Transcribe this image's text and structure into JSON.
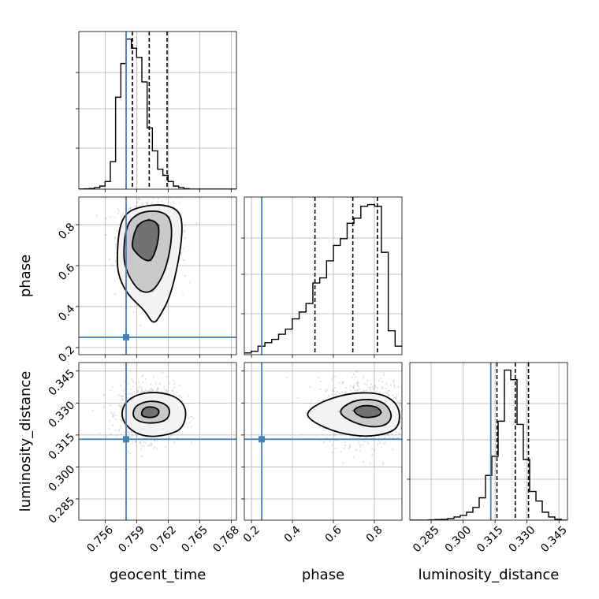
{
  "chart_data": {
    "type": "corner",
    "parameters": [
      "geocent_time",
      "phase",
      "luminosity_distance"
    ],
    "truths": {
      "geocent_time": 0.758,
      "phase": 0.25,
      "luminosity_distance": 0.313
    },
    "ranges": {
      "geocent_time": [
        0.7535,
        0.7685
      ],
      "phase": [
        0.165,
        0.935
      ],
      "luminosity_distance": [
        0.275,
        0.349
      ]
    },
    "ticks": {
      "geocent_time": [
        0.756,
        0.759,
        0.762,
        0.765,
        0.768
      ],
      "phase": [
        0.2,
        0.4,
        0.6,
        0.8
      ],
      "luminosity_distance": [
        0.285,
        0.3,
        0.315,
        0.33,
        0.345
      ]
    },
    "tick_labels": {
      "geocent_time": [
        "0.756",
        "0.759",
        "0.762",
        "0.765",
        "0.768"
      ],
      "phase": [
        "0.2",
        "0.4",
        "0.6",
        "0.8"
      ],
      "luminosity_distance": [
        "0.285",
        "0.300",
        "0.315",
        "0.330",
        "0.345"
      ]
    },
    "quantiles": {
      "geocent_time": [
        0.7586,
        0.7602,
        0.7619
      ],
      "phase": [
        0.51,
        0.695,
        0.815
      ],
      "luminosity_distance": [
        0.3159,
        0.3245,
        0.3307
      ]
    },
    "marginals": {
      "geocent_time": {
        "min": 0.7535,
        "max": 0.7685,
        "counts": [
          0.1,
          0.2,
          0.4,
          1.0,
          2.0,
          5.0,
          18,
          60,
          82,
          98,
          92,
          86,
          70,
          40,
          25,
          13,
          9,
          5,
          2,
          1,
          0.3,
          0,
          0,
          0,
          0,
          0,
          0,
          0,
          0,
          0
        ]
      },
      "phase": {
        "min": 0.165,
        "max": 0.935,
        "counts": [
          1,
          2,
          5,
          7,
          9,
          12,
          15,
          21,
          25,
          30,
          42,
          45,
          55,
          64,
          68,
          77,
          80,
          87,
          88,
          87,
          60,
          14,
          5
        ]
      },
      "luminosity_distance": {
        "min": 0.275,
        "max": 0.349,
        "counts": [
          0,
          0,
          0,
          0.2,
          0.4,
          0.5,
          1,
          2,
          3,
          5,
          8,
          14,
          28,
          40,
          62,
          94,
          88,
          60,
          38,
          18,
          12,
          5,
          2,
          0.6,
          0
        ]
      }
    },
    "contours_2d": [
      {
        "x": "geocent_time",
        "y": "phase",
        "center": [
          0.7602,
          0.725
        ],
        "sigma": [
          0.0011,
          0.08
        ],
        "levels": [
          [
            [
              0.7585,
              0.7
            ],
            [
              0.759,
              0.8
            ],
            [
              0.7602,
              0.83
            ],
            [
              0.7612,
              0.8
            ],
            [
              0.761,
              0.7
            ],
            [
              0.7604,
              0.62
            ],
            [
              0.7596,
              0.63
            ],
            [
              0.7588,
              0.67
            ]
          ],
          [
            [
              0.7577,
              0.64
            ],
            [
              0.758,
              0.8
            ],
            [
              0.7592,
              0.86
            ],
            [
              0.761,
              0.87
            ],
            [
              0.7622,
              0.84
            ],
            [
              0.7624,
              0.74
            ],
            [
              0.7618,
              0.58
            ],
            [
              0.7606,
              0.47
            ],
            [
              0.7593,
              0.47
            ],
            [
              0.7582,
              0.55
            ]
          ],
          [
            [
              0.7571,
              0.6
            ],
            [
              0.7573,
              0.78
            ],
            [
              0.758,
              0.86
            ],
            [
              0.7595,
              0.89
            ],
            [
              0.7615,
              0.9
            ],
            [
              0.7631,
              0.87
            ],
            [
              0.7634,
              0.78
            ],
            [
              0.763,
              0.62
            ],
            [
              0.7622,
              0.45
            ],
            [
              0.7613,
              0.36
            ],
            [
              0.7606,
              0.31
            ],
            [
              0.7598,
              0.38
            ],
            [
              0.7583,
              0.45
            ],
            [
              0.7575,
              0.52
            ]
          ]
        ]
      },
      {
        "x": "geocent_time",
        "y": "luminosity_distance",
        "center": [
          0.7602,
          0.3255
        ],
        "sigma": [
          0.0011,
          0.005
        ],
        "levels": [
          [
            [
              0.7594,
              0.324
            ],
            [
              0.7596,
              0.3275
            ],
            [
              0.7604,
              0.3285
            ],
            [
              0.7612,
              0.3268
            ],
            [
              0.761,
              0.3238
            ],
            [
              0.7602,
              0.323
            ]
          ],
          [
            [
              0.7586,
              0.3235
            ],
            [
              0.7588,
              0.3285
            ],
            [
              0.76,
              0.331
            ],
            [
              0.7614,
              0.3305
            ],
            [
              0.7622,
              0.3275
            ],
            [
              0.762,
              0.3222
            ],
            [
              0.7608,
              0.3205
            ],
            [
              0.7594,
              0.3208
            ]
          ],
          [
            [
              0.7575,
              0.323
            ],
            [
              0.7578,
              0.33
            ],
            [
              0.7592,
              0.3345
            ],
            [
              0.7612,
              0.3352
            ],
            [
              0.763,
              0.3325
            ],
            [
              0.7638,
              0.3265
            ],
            [
              0.7634,
              0.318
            ],
            [
              0.762,
              0.315
            ],
            [
              0.76,
              0.314
            ],
            [
              0.7585,
              0.3168
            ]
          ]
        ]
      },
      {
        "x": "phase",
        "y": "luminosity_distance",
        "center": [
          0.77,
          0.3255
        ],
        "sigma": [
          0.09,
          0.006
        ],
        "levels": [
          [
            [
              0.69,
              0.3265
            ],
            [
              0.74,
              0.329
            ],
            [
              0.81,
              0.3285
            ],
            [
              0.84,
              0.3255
            ],
            [
              0.81,
              0.3235
            ],
            [
              0.74,
              0.323
            ]
          ],
          [
            [
              0.62,
              0.326
            ],
            [
              0.69,
              0.331
            ],
            [
              0.78,
              0.332
            ],
            [
              0.855,
              0.33
            ],
            [
              0.89,
              0.324
            ],
            [
              0.86,
              0.3195
            ],
            [
              0.78,
              0.3185
            ],
            [
              0.68,
              0.3215
            ]
          ],
          [
            [
              0.46,
              0.3255
            ],
            [
              0.56,
              0.3315
            ],
            [
              0.7,
              0.335
            ],
            [
              0.84,
              0.3345
            ],
            [
              0.92,
              0.329
            ],
            [
              0.925,
              0.32
            ],
            [
              0.88,
              0.316
            ],
            [
              0.76,
              0.314
            ],
            [
              0.62,
              0.316
            ],
            [
              0.5,
              0.321
            ]
          ]
        ]
      }
    ]
  }
}
